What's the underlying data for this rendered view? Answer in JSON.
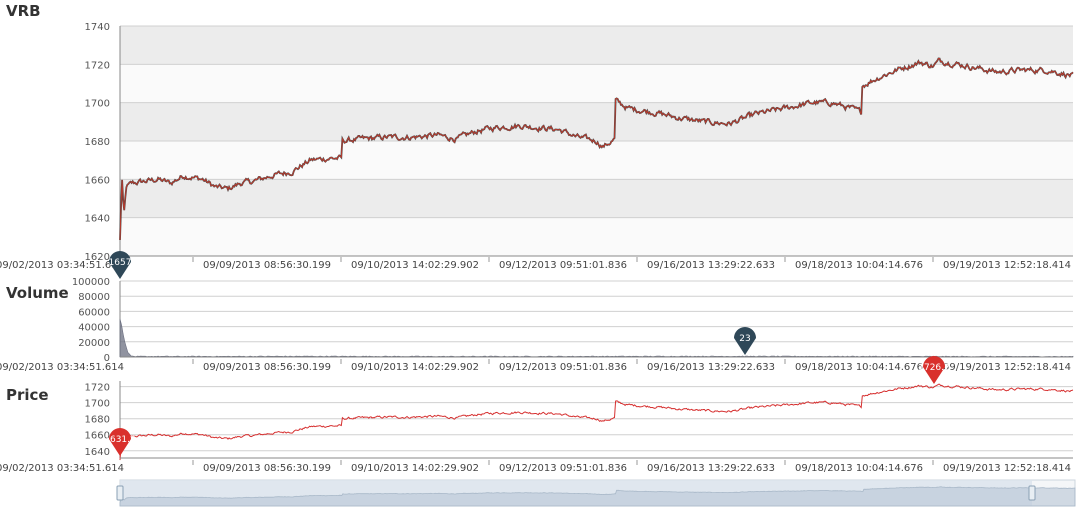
{
  "panels": {
    "vrb_title": "VRB",
    "volume_title": "Volume",
    "price_title": "Price"
  },
  "colors": {
    "band_dark": "#ececec",
    "band_light": "#fafafa",
    "grid": "#d0d0d0",
    "vrb_line": "#c0392b",
    "vrb_shadow": "#2b2b2b",
    "price_line": "#d63030",
    "volume_fill": "#6b6f80",
    "marker_dark": "#2f4858",
    "marker_red": "#d9302c",
    "navigator_fill": "#dbe4ec",
    "navigator_outline": "#a8b8c8"
  },
  "x_axis_labels": [
    "09/02/2013 03:34:51.614",
    "09/09/2013 08:56:30.199",
    "09/10/2013 14:02:29.902",
    "09/12/2013 09:51:01.836",
    "09/16/2013 13:29:22.633",
    "09/18/2013 10:04:14.676",
    "09/19/2013 12:52:18.414"
  ],
  "markers": {
    "vrb_low": "1657",
    "volume_min": "23",
    "price_min": "1631.2",
    "price_max": "1726.2"
  },
  "chart_data": [
    {
      "type": "line",
      "name": "VRB",
      "ylim": [
        1620,
        1740
      ],
      "yticks": [
        1620,
        1640,
        1660,
        1680,
        1700,
        1720,
        1740
      ],
      "keypoints": [
        [
          0,
          1628
        ],
        [
          0.3,
          1645
        ],
        [
          0.6,
          1662
        ],
        [
          1.2,
          1640
        ],
        [
          2,
          1656
        ],
        [
          4,
          1658
        ],
        [
          8,
          1659
        ],
        [
          12,
          1660
        ],
        [
          16,
          1658
        ],
        [
          20,
          1662
        ],
        [
          26,
          1660
        ],
        [
          30,
          1656
        ],
        [
          34,
          1655
        ],
        [
          38,
          1658
        ],
        [
          42,
          1659
        ],
        [
          48,
          1662
        ],
        [
          54,
          1664
        ],
        [
          60,
          1670
        ],
        [
          66,
          1671
        ],
        [
          69.9,
          1671
        ],
        [
          70,
          1680
        ],
        [
          76,
          1681
        ],
        [
          84,
          1682
        ],
        [
          92,
          1682
        ],
        [
          100,
          1683
        ],
        [
          106,
          1681
        ],
        [
          112,
          1685
        ],
        [
          118,
          1687
        ],
        [
          126,
          1688
        ],
        [
          132,
          1687
        ],
        [
          138,
          1686
        ],
        [
          144,
          1682
        ],
        [
          150,
          1680
        ],
        [
          152,
          1677
        ],
        [
          155.9,
          1681
        ],
        [
          156,
          1701
        ],
        [
          160,
          1697
        ],
        [
          168,
          1695
        ],
        [
          176,
          1692
        ],
        [
          184,
          1690
        ],
        [
          192,
          1689
        ],
        [
          200,
          1694
        ],
        [
          206,
          1696
        ],
        [
          212,
          1698
        ],
        [
          218,
          1700
        ],
        [
          224,
          1700
        ],
        [
          230,
          1697
        ],
        [
          233.5,
          1695
        ],
        [
          233.6,
          1709
        ],
        [
          240,
          1714
        ],
        [
          246,
          1718
        ],
        [
          252,
          1721
        ],
        [
          256,
          1719
        ],
        [
          258,
          1722
        ],
        [
          264,
          1720
        ],
        [
          270,
          1718
        ],
        [
          276,
          1716
        ],
        [
          284,
          1717
        ],
        [
          292,
          1717
        ],
        [
          300,
          1714
        ]
      ]
    },
    {
      "type": "area",
      "name": "Volume",
      "ylim": [
        0,
        100000
      ],
      "yticks": [
        0,
        20000,
        40000,
        60000,
        80000,
        100000
      ],
      "keypoints": [
        [
          0,
          50000
        ],
        [
          0.5,
          42000
        ],
        [
          1,
          30000
        ],
        [
          1.6,
          18000
        ],
        [
          2.5,
          6000
        ],
        [
          3.5,
          1500
        ],
        [
          5,
          400
        ],
        [
          20,
          300
        ],
        [
          60,
          500
        ],
        [
          100,
          300
        ],
        [
          150,
          400
        ],
        [
          200,
          500
        ],
        [
          250,
          300
        ],
        [
          300,
          200
        ]
      ]
    },
    {
      "type": "line",
      "name": "Price",
      "ylim": [
        1631,
        1727
      ],
      "yticks": [
        1640,
        1660,
        1680,
        1700,
        1720
      ],
      "keypoints": "same-as-VRB"
    }
  ]
}
